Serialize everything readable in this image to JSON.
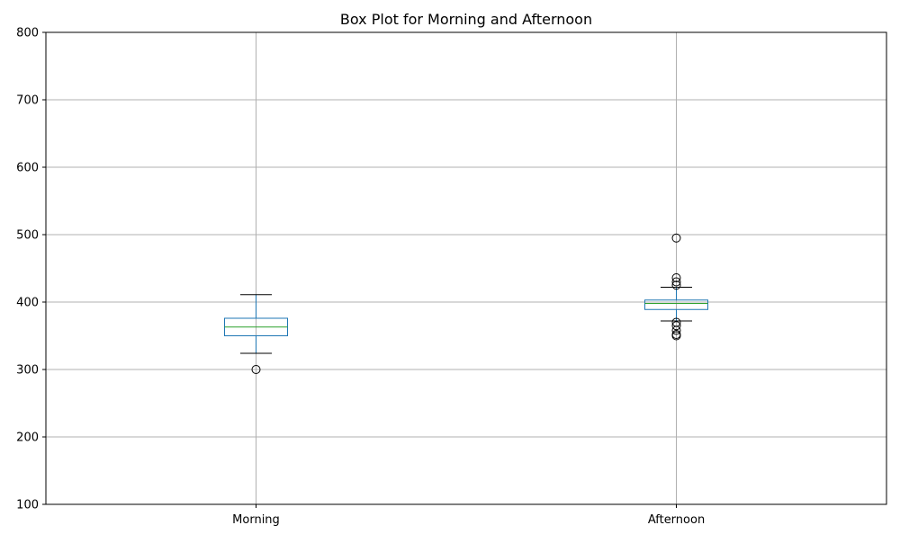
{
  "chart_data": {
    "type": "box",
    "title": "Box Plot for Morning and Afternoon",
    "xlabel": "",
    "ylabel": "",
    "ylim": [
      100,
      800
    ],
    "yticks": [
      100,
      200,
      300,
      400,
      500,
      600,
      700,
      800
    ],
    "grid": true,
    "categories": [
      "Morning",
      "Afternoon"
    ],
    "boxes": [
      {
        "name": "Morning",
        "whisker_low": 324,
        "q1": 350,
        "median": 363,
        "q3": 376,
        "whisker_high": 411,
        "outliers": [
          300
        ]
      },
      {
        "name": "Afternoon",
        "whisker_low": 372,
        "q1": 389,
        "median": 398,
        "q3": 403,
        "whisker_high": 422,
        "outliers": [
          350,
          352,
          358,
          365,
          370,
          425,
          430,
          436,
          495
        ]
      }
    ],
    "colors": {
      "box": "#1f77b4",
      "median": "#2ca02c",
      "whisker_cap": "#000000",
      "outlier": "#000000",
      "grid": "#b0b0b0",
      "axis": "#000000"
    }
  }
}
